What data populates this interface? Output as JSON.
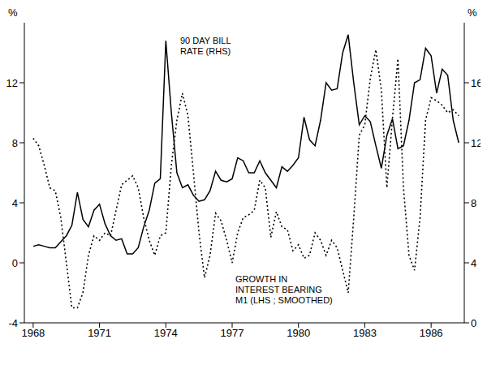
{
  "chart_data": {
    "type": "line",
    "y_label": "%",
    "y2_label": "%",
    "annotations": [
      {
        "text": "90 DAY BILL\nRATE (RHS)"
      },
      {
        "text": "GROWTH IN\nINTEREST BEARING\nM1 (LHS ; SMOOTHED)"
      }
    ],
    "x": [
      1968,
      1968.25,
      1968.5,
      1968.75,
      1969,
      1969.25,
      1969.5,
      1969.75,
      1970,
      1970.25,
      1970.5,
      1970.75,
      1971,
      1971.25,
      1971.5,
      1971.75,
      1972,
      1972.25,
      1972.5,
      1972.75,
      1973,
      1973.25,
      1973.5,
      1973.75,
      1974,
      1974.25,
      1974.5,
      1974.75,
      1975,
      1975.25,
      1975.5,
      1975.75,
      1976,
      1976.25,
      1976.5,
      1976.75,
      1977,
      1977.25,
      1977.5,
      1977.75,
      1978,
      1978.25,
      1978.5,
      1978.75,
      1979,
      1979.25,
      1979.5,
      1979.75,
      1980,
      1980.25,
      1980.5,
      1980.75,
      1981,
      1981.25,
      1981.5,
      1981.75,
      1982,
      1982.25,
      1982.5,
      1982.75,
      1983,
      1983.25,
      1983.5,
      1983.75,
      1984,
      1984.25,
      1984.5,
      1984.75,
      1985,
      1985.25,
      1985.5,
      1985.75,
      1986,
      1986.25,
      1986.5,
      1986.75,
      1987,
      1987.25
    ],
    "series": [
      {
        "name": "90 DAY BILL RATE (RHS)",
        "color": "#000000",
        "line_style": "solid",
        "axis": "y2",
        "values": [
          5.1,
          5.2,
          5.1,
          5.0,
          5.0,
          5.4,
          5.8,
          6.5,
          8.7,
          6.9,
          6.4,
          7.5,
          7.9,
          6.6,
          5.8,
          5.5,
          5.6,
          4.6,
          4.6,
          5.0,
          6.4,
          7.5,
          9.3,
          9.6,
          18.8,
          14.0,
          10.0,
          9.0,
          9.2,
          8.5,
          8.1,
          8.2,
          8.8,
          10.1,
          9.5,
          9.4,
          9.6,
          11.0,
          10.8,
          10.0,
          10.0,
          10.8,
          10.0,
          9.5,
          9.0,
          10.4,
          10.1,
          10.5,
          11.0,
          13.7,
          12.2,
          11.8,
          13.5,
          16.0,
          15.5,
          15.6,
          18.0,
          19.2,
          16.0,
          13.2,
          13.8,
          13.4,
          11.8,
          10.3,
          12.5,
          13.6,
          11.6,
          11.8,
          13.5,
          16.0,
          16.2,
          18.3,
          17.8,
          15.3,
          16.9,
          16.5,
          13.5,
          12.0
        ]
      },
      {
        "name": "GROWTH IN INTEREST BEARING M1 (LHS ; SMOOTHED)",
        "color": "#000000",
        "line_style": "dotted",
        "values": [
          8.3,
          7.8,
          6.5,
          5.0,
          4.8,
          3.0,
          0.0,
          -3.0,
          -3.0,
          -2.0,
          0.5,
          1.8,
          1.5,
          2.0,
          1.8,
          3.5,
          5.2,
          5.5,
          5.8,
          5.0,
          3.0,
          1.5,
          0.5,
          1.8,
          2.0,
          6.5,
          9.5,
          11.3,
          9.8,
          6.0,
          2.0,
          -1.0,
          0.5,
          3.3,
          2.8,
          1.5,
          0.0,
          2.0,
          3.0,
          3.2,
          3.5,
          5.5,
          5.0,
          1.7,
          3.4,
          2.4,
          2.2,
          0.8,
          1.2,
          0.3,
          0.5,
          2.0,
          1.5,
          0.5,
          1.5,
          1.0,
          -0.5,
          -2.0,
          3.0,
          8.5,
          9.2,
          12.3,
          14.2,
          11.5,
          5.0,
          9.6,
          13.6,
          5.0,
          0.5,
          -0.5,
          3.0,
          9.5,
          11.0,
          10.8,
          10.5,
          10.0,
          10.2,
          9.8
        ]
      }
    ],
    "xlim": [
      1967.6,
      1987.5
    ],
    "xticks": [
      1968,
      1971,
      1974,
      1977,
      1980,
      1983,
      1986
    ],
    "ylim": [
      -4,
      16
    ],
    "yticks": [
      -4,
      0,
      4,
      8,
      12
    ],
    "y2lim": [
      0,
      20
    ],
    "y2ticks": [
      0,
      4,
      8,
      12,
      16
    ],
    "grid": false
  }
}
